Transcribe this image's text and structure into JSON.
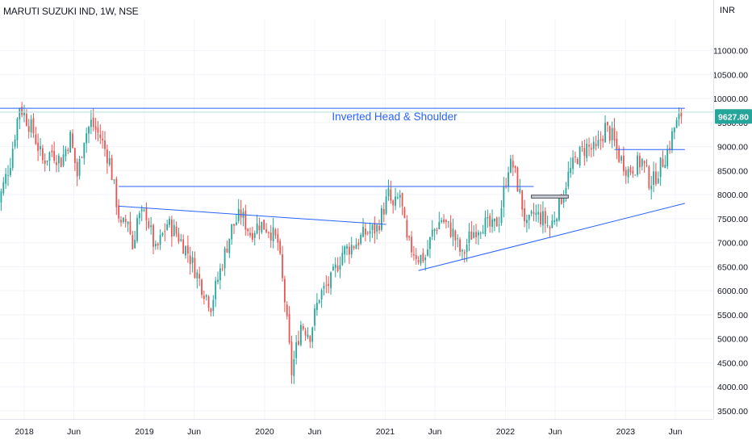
{
  "chart_data": {
    "type": "candlestick",
    "title": "MARUTI SUZUKI IND, 1W, NSE",
    "currency": "INR",
    "last_price": "9627.80",
    "annotation": "Inverted Head & Shoulder",
    "y_ticks": [
      "3500.00",
      "4000.00",
      "4500.00",
      "5000.00",
      "5500.00",
      "6000.00",
      "6500.00",
      "7000.00",
      "7500.00",
      "8000.00",
      "8500.00",
      "9000.00",
      "9500.00",
      "10000.00",
      "10500.00",
      "11000.00"
    ],
    "ylim": [
      3330,
      11650
    ],
    "x_ticks": [
      "2018",
      "Jun",
      "2019",
      "Jun",
      "2020",
      "Jun",
      "2021",
      "Jun",
      "2022",
      "Jun",
      "2023",
      "Jun"
    ],
    "x_tick_dates": [
      "2018-01-01",
      "2018-06-01",
      "2019-01-01",
      "2019-06-01",
      "2020-01-01",
      "2020-06-01",
      "2021-01-01",
      "2021-06-01",
      "2022-01-01",
      "2022-06-01",
      "2023-01-01",
      "2023-06-01"
    ],
    "x_range": [
      "2017-10-09",
      "2023-06-30"
    ],
    "price_path": [
      [
        "2017-10-09",
        7700
      ],
      [
        "2017-11-20",
        8700
      ],
      [
        "2017-12-18",
        9850
      ],
      [
        "2018-01-29",
        9300
      ],
      [
        "2018-02-26",
        8700
      ],
      [
        "2018-03-26",
        8900
      ],
      [
        "2018-04-23",
        8700
      ],
      [
        "2018-05-21",
        9200
      ],
      [
        "2018-06-11",
        8400
      ],
      [
        "2018-07-02",
        9200
      ],
      [
        "2018-07-23",
        9500
      ],
      [
        "2018-08-20",
        9200
      ],
      [
        "2018-09-17",
        8700
      ],
      [
        "2018-10-22",
        7300
      ],
      [
        "2018-11-12",
        7500
      ],
      [
        "2018-11-26",
        6900
      ],
      [
        "2018-12-10",
        7500
      ],
      [
        "2019-01-07",
        7600
      ],
      [
        "2019-02-04",
        6800
      ],
      [
        "2019-03-11",
        7400
      ],
      [
        "2019-04-08",
        7200
      ],
      [
        "2019-05-13",
        6800
      ],
      [
        "2019-06-24",
        6100
      ],
      [
        "2019-07-22",
        5700
      ],
      [
        "2019-08-26",
        6600
      ],
      [
        "2019-09-23",
        7300
      ],
      [
        "2019-10-21",
        7600
      ],
      [
        "2019-11-18",
        7200
      ],
      [
        "2019-12-16",
        7400
      ],
      [
        "2020-01-13",
        7300
      ],
      [
        "2020-02-10",
        7000
      ],
      [
        "2020-03-02",
        5800
      ],
      [
        "2020-03-23",
        4300
      ],
      [
        "2020-04-20",
        5300
      ],
      [
        "2020-05-18",
        5100
      ],
      [
        "2020-06-15",
        5900
      ],
      [
        "2020-07-20",
        6200
      ],
      [
        "2020-08-24",
        6800
      ],
      [
        "2020-10-05",
        7000
      ],
      [
        "2020-11-02",
        7200
      ],
      [
        "2020-12-07",
        7300
      ],
      [
        "2021-01-11",
        8000
      ],
      [
        "2021-01-25",
        7700
      ],
      [
        "2021-02-15",
        8000
      ],
      [
        "2021-03-08",
        7000
      ],
      [
        "2021-04-12",
        6700
      ],
      [
        "2021-05-03",
        6700
      ],
      [
        "2021-05-24",
        7200
      ],
      [
        "2021-06-21",
        7500
      ],
      [
        "2021-07-26",
        7200
      ],
      [
        "2021-08-23",
        6700
      ],
      [
        "2021-09-13",
        7100
      ],
      [
        "2021-10-04",
        7300
      ],
      [
        "2021-10-25",
        7400
      ],
      [
        "2021-11-22",
        7300
      ],
      [
        "2021-12-13",
        7500
      ],
      [
        "2022-01-10",
        8600
      ],
      [
        "2022-01-24",
        8600
      ],
      [
        "2022-02-14",
        8000
      ],
      [
        "2022-03-07",
        7300
      ],
      [
        "2022-03-28",
        7600
      ],
      [
        "2022-04-25",
        7500
      ],
      [
        "2022-05-16",
        7300
      ],
      [
        "2022-06-13",
        7800
      ],
      [
        "2022-07-11",
        8400
      ],
      [
        "2022-08-08",
        8800
      ],
      [
        "2022-09-05",
        9000
      ],
      [
        "2022-10-03",
        8900
      ],
      [
        "2022-10-31",
        9400
      ],
      [
        "2022-11-21",
        9200
      ],
      [
        "2022-12-12",
        8800
      ],
      [
        "2023-01-09",
        8500
      ],
      [
        "2023-01-30",
        8600
      ],
      [
        "2023-02-20",
        8700
      ],
      [
        "2023-03-13",
        8300
      ],
      [
        "2023-03-27",
        8300
      ],
      [
        "2023-04-17",
        8600
      ],
      [
        "2023-05-08",
        8900
      ],
      [
        "2023-05-29",
        9400
      ],
      [
        "2023-06-19",
        9628
      ]
    ],
    "trendlines": [
      {
        "name": "resistance-top",
        "from": [
          "2017-10-09",
          9800
        ],
        "to": [
          "2023-06-30",
          9800
        ]
      },
      {
        "name": "neckline-upper",
        "from": [
          "2018-10-15",
          8170
        ],
        "to": [
          "2022-03-28",
          8170
        ]
      },
      {
        "name": "left-shoulder-line",
        "from": [
          "2018-10-15",
          7760
        ],
        "to": [
          "2021-01-04",
          7380
        ]
      },
      {
        "name": "lower-support",
        "from": [
          "2021-04-12",
          6420
        ],
        "to": [
          "2023-06-30",
          7820
        ]
      },
      {
        "name": "neckline-right",
        "from": [
          "2022-11-28",
          8940
        ],
        "to": [
          "2023-06-30",
          8940
        ]
      }
    ],
    "grid": true,
    "legend": "none"
  }
}
